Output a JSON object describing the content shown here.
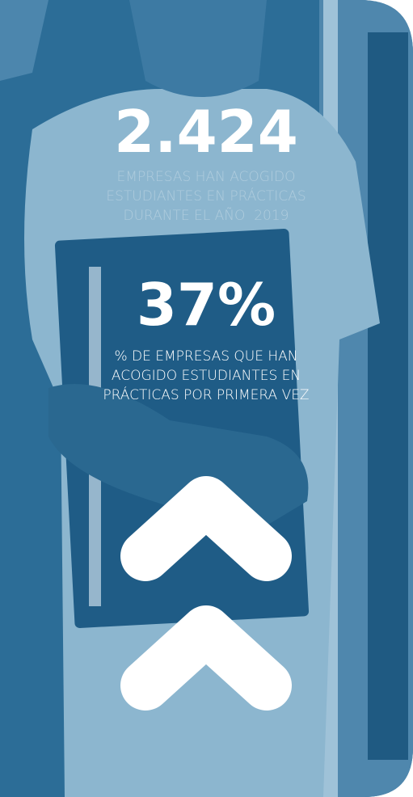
{
  "stats": [
    {
      "value": "2.424",
      "description": [
        "EMPRESAS HAN ACOGIDO",
        "ESTUDIANTES EN PRÁCTICAS",
        "DURANTE EL AÑO  2019"
      ]
    },
    {
      "value": "37%",
      "description": [
        "% DE EMPRESAS QUE HAN",
        "ACOGIDO ESTUDIANTES EN",
        "PRÁCTICAS POR PRIMERA VEZ"
      ]
    }
  ]
}
